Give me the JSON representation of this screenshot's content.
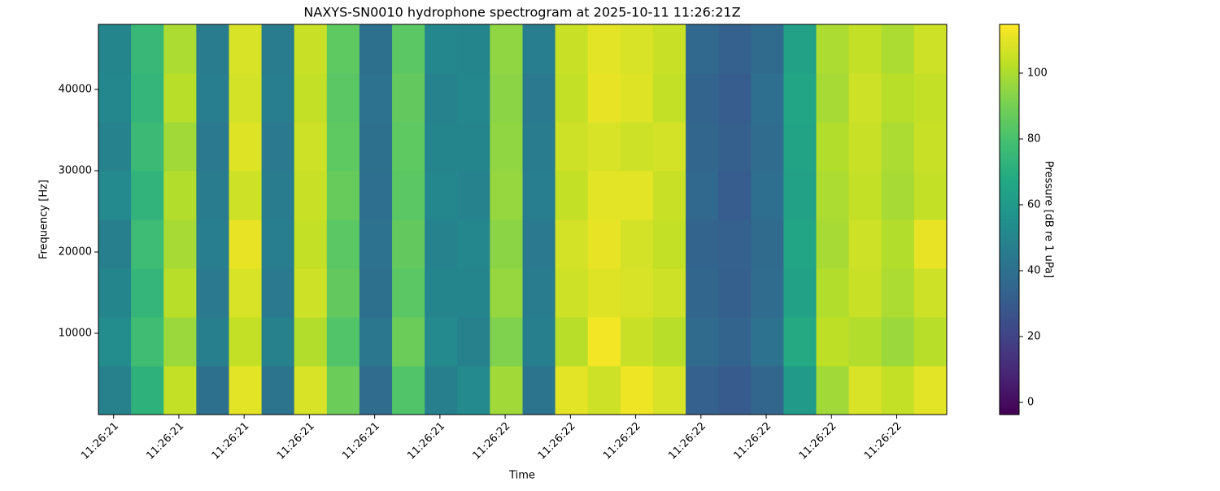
{
  "chart_data": {
    "type": "heatmap",
    "title": "NAXYS-SN0010 hydrophone spectrogram at 2025-10-11 11:26:21Z",
    "xlabel": "Time",
    "ylabel": "Frequency [Hz]",
    "xlim": [
      21.115,
      23.065
    ],
    "xticks": [
      {
        "value": 21.15,
        "label": "11:26:21"
      },
      {
        "value": 21.3,
        "label": "11:26:21"
      },
      {
        "value": 21.45,
        "label": "11:26:21"
      },
      {
        "value": 21.6,
        "label": "11:26:21"
      },
      {
        "value": 21.75,
        "label": "11:26:21"
      },
      {
        "value": 21.9,
        "label": "11:26:21"
      },
      {
        "value": 22.05,
        "label": "11:26:22"
      },
      {
        "value": 22.2,
        "label": "11:26:22"
      },
      {
        "value": 22.35,
        "label": "11:26:22"
      },
      {
        "value": 22.5,
        "label": "11:26:22"
      },
      {
        "value": 22.65,
        "label": "11:26:22"
      },
      {
        "value": 22.8,
        "label": "11:26:22"
      },
      {
        "value": 22.95,
        "label": "11:26:22"
      }
    ],
    "ylim": [
      0,
      48000
    ],
    "yticks": [
      10000,
      20000,
      30000,
      40000
    ],
    "x_edges": [
      21.115,
      21.19,
      21.265,
      21.34,
      21.415,
      21.49,
      21.565,
      21.64,
      21.715,
      21.79,
      21.865,
      21.94,
      22.015,
      22.09,
      22.165,
      22.24,
      22.315,
      22.39,
      22.465,
      22.54,
      22.615,
      22.69,
      22.765,
      22.84,
      22.915,
      22.99,
      23.065
    ],
    "y_edges": [
      0,
      6000,
      12000,
      18000,
      24000,
      30000,
      36000,
      42000,
      48000
    ],
    "values": [
      [
        48,
        72,
        104,
        40,
        110,
        42,
        108,
        88,
        38,
        82,
        47,
        52,
        98,
        42,
        110,
        106,
        112,
        108,
        33,
        30,
        35,
        60,
        98,
        108,
        104,
        110
      ],
      [
        53,
        78,
        97,
        47,
        104,
        48,
        101,
        82,
        43,
        88,
        52,
        48,
        92,
        47,
        102,
        113,
        105,
        102,
        37,
        34,
        41,
        68,
        103,
        101,
        97,
        102
      ],
      [
        50,
        74,
        102,
        44,
        108,
        44,
        106,
        86,
        40,
        84,
        50,
        50,
        96,
        45,
        106,
        109,
        108,
        106,
        35,
        32,
        38,
        64,
        101,
        105,
        100,
        106
      ],
      [
        47,
        77,
        99,
        46,
        111,
        46,
        104,
        84,
        41,
        86,
        49,
        51,
        94,
        44,
        107,
        111,
        107,
        104,
        34,
        33,
        37,
        66,
        99,
        106,
        101,
        111
      ],
      [
        52,
        73,
        101,
        45,
        106,
        45,
        105,
        87,
        39,
        84,
        51,
        49,
        96,
        46,
        104,
        110,
        110,
        105,
        36,
        31,
        39,
        64,
        100,
        104,
        99,
        104
      ],
      [
        49,
        76,
        98,
        44,
        109,
        44,
        106,
        85,
        40,
        85,
        50,
        50,
        95,
        45,
        106,
        108,
        106,
        107,
        35,
        32,
        38,
        65,
        101,
        105,
        100,
        105
      ],
      [
        51,
        74,
        102,
        46,
        107,
        46,
        104,
        84,
        41,
        86,
        49,
        51,
        94,
        44,
        104,
        111,
        109,
        104,
        34,
        31,
        39,
        66,
        99,
        106,
        102,
        104
      ],
      [
        50,
        75,
        100,
        45,
        108,
        45,
        105,
        85,
        40,
        84,
        51,
        50,
        95,
        46,
        105,
        110,
        108,
        105,
        36,
        33,
        37,
        64,
        100,
        104,
        100,
        106
      ]
    ],
    "colormap": "viridis",
    "colorbar": {
      "label": "Pressure [dB re 1 uPa]",
      "lim": [
        -3.7,
        114.8
      ],
      "ticks": [
        0,
        20,
        40,
        60,
        80,
        100
      ]
    }
  }
}
